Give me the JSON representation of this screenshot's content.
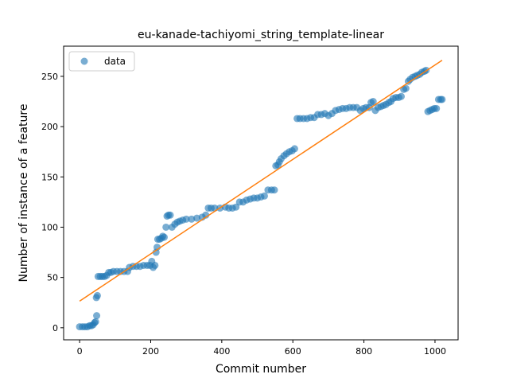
{
  "chart_data": {
    "type": "scatter",
    "title": "eu-kanade-tachiyomi_string_template-linear",
    "xlabel": "Commit number",
    "ylabel": "Number of instance of a feature",
    "xlim": [
      -45,
      1065
    ],
    "ylim": [
      -12,
      280
    ],
    "x_ticks": [
      0,
      200,
      400,
      600,
      800,
      1000
    ],
    "y_ticks": [
      0,
      50,
      100,
      150,
      200,
      250
    ],
    "grid": false,
    "legend": {
      "position": "top-left",
      "entries": [
        "data"
      ]
    },
    "colors": {
      "data": "#1f77b4",
      "fit": "#ff7f0e"
    },
    "series": [
      {
        "name": "data",
        "points": [
          [
            0,
            1
          ],
          [
            8,
            1
          ],
          [
            15,
            1
          ],
          [
            22,
            1
          ],
          [
            28,
            2
          ],
          [
            33,
            2
          ],
          [
            38,
            3
          ],
          [
            42,
            5
          ],
          [
            45,
            6
          ],
          [
            48,
            12
          ],
          [
            47,
            30
          ],
          [
            50,
            32
          ],
          [
            52,
            51
          ],
          [
            58,
            51
          ],
          [
            64,
            51
          ],
          [
            70,
            51
          ],
          [
            76,
            52
          ],
          [
            82,
            55
          ],
          [
            88,
            55
          ],
          [
            95,
            56
          ],
          [
            105,
            56
          ],
          [
            115,
            56
          ],
          [
            125,
            56
          ],
          [
            135,
            56
          ],
          [
            140,
            60
          ],
          [
            150,
            61
          ],
          [
            160,
            61
          ],
          [
            170,
            61
          ],
          [
            180,
            62
          ],
          [
            190,
            62
          ],
          [
            198,
            62
          ],
          [
            203,
            66
          ],
          [
            207,
            60
          ],
          [
            212,
            62
          ],
          [
            215,
            75
          ],
          [
            218,
            80
          ],
          [
            220,
            88
          ],
          [
            225,
            88
          ],
          [
            230,
            89
          ],
          [
            234,
            91
          ],
          [
            238,
            90
          ],
          [
            243,
            100
          ],
          [
            246,
            111
          ],
          [
            250,
            112
          ],
          [
            255,
            112
          ],
          [
            260,
            100
          ],
          [
            268,
            103
          ],
          [
            275,
            105
          ],
          [
            282,
            106
          ],
          [
            290,
            107
          ],
          [
            300,
            108
          ],
          [
            315,
            108
          ],
          [
            330,
            109
          ],
          [
            345,
            110
          ],
          [
            355,
            112
          ],
          [
            362,
            119
          ],
          [
            370,
            119
          ],
          [
            380,
            119
          ],
          [
            395,
            119
          ],
          [
            410,
            120
          ],
          [
            420,
            119
          ],
          [
            430,
            119
          ],
          [
            440,
            120
          ],
          [
            450,
            125
          ],
          [
            460,
            125
          ],
          [
            470,
            127
          ],
          [
            480,
            128
          ],
          [
            490,
            129
          ],
          [
            500,
            129
          ],
          [
            510,
            130
          ],
          [
            520,
            131
          ],
          [
            530,
            137
          ],
          [
            540,
            137
          ],
          [
            548,
            137
          ],
          [
            552,
            161
          ],
          [
            558,
            162
          ],
          [
            562,
            165
          ],
          [
            567,
            168
          ],
          [
            575,
            171
          ],
          [
            582,
            173
          ],
          [
            590,
            175
          ],
          [
            598,
            176
          ],
          [
            605,
            178
          ],
          [
            612,
            208
          ],
          [
            620,
            208
          ],
          [
            630,
            208
          ],
          [
            640,
            208
          ],
          [
            650,
            209
          ],
          [
            660,
            209
          ],
          [
            670,
            212
          ],
          [
            680,
            212
          ],
          [
            690,
            213
          ],
          [
            700,
            211
          ],
          [
            710,
            213
          ],
          [
            720,
            216
          ],
          [
            730,
            217
          ],
          [
            740,
            218
          ],
          [
            750,
            218
          ],
          [
            760,
            219
          ],
          [
            770,
            219
          ],
          [
            780,
            219
          ],
          [
            790,
            216
          ],
          [
            798,
            218
          ],
          [
            806,
            219
          ],
          [
            815,
            219
          ],
          [
            820,
            224
          ],
          [
            826,
            225
          ],
          [
            832,
            216
          ],
          [
            840,
            219
          ],
          [
            848,
            220
          ],
          [
            855,
            221
          ],
          [
            862,
            222
          ],
          [
            870,
            224
          ],
          [
            876,
            225
          ],
          [
            882,
            228
          ],
          [
            890,
            229
          ],
          [
            898,
            229
          ],
          [
            905,
            230
          ],
          [
            912,
            237
          ],
          [
            918,
            238
          ],
          [
            925,
            245
          ],
          [
            930,
            247
          ],
          [
            937,
            249
          ],
          [
            944,
            250
          ],
          [
            950,
            251
          ],
          [
            957,
            252
          ],
          [
            963,
            254
          ],
          [
            970,
            255
          ],
          [
            975,
            256
          ],
          [
            980,
            215
          ],
          [
            986,
            216
          ],
          [
            992,
            217
          ],
          [
            998,
            218
          ],
          [
            1004,
            218
          ],
          [
            1010,
            227
          ],
          [
            1016,
            227
          ],
          [
            1020,
            227
          ]
        ]
      }
    ],
    "fit_line": {
      "x": [
        0,
        1020
      ],
      "y": [
        26.5,
        266
      ]
    }
  }
}
